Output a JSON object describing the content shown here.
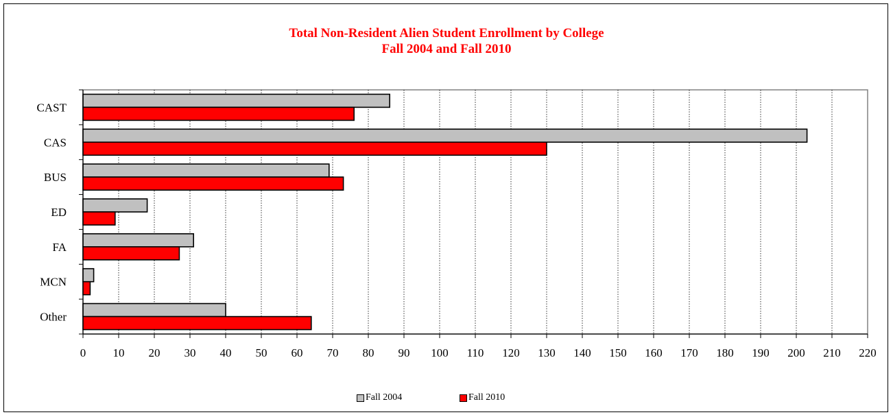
{
  "chart_data": {
    "type": "bar",
    "orientation": "horizontal",
    "title": "Total Non-Resident Alien Student Enrollment by College",
    "subtitle": "Fall 2004 and Fall 2010",
    "categories": [
      "CAST",
      "CAS",
      "BUS",
      "ED",
      "FA",
      "MCN",
      "Other"
    ],
    "series": [
      {
        "name": "Fall 2004",
        "color": "#c0c0c0",
        "values": [
          86,
          203,
          69,
          18,
          31,
          3,
          40
        ]
      },
      {
        "name": "Fall 2010",
        "color": "#ff0000",
        "values": [
          76,
          130,
          73,
          9,
          27,
          2,
          64
        ]
      }
    ],
    "xlim": [
      0,
      220
    ],
    "xticks": [
      0,
      10,
      20,
      30,
      40,
      50,
      60,
      70,
      80,
      90,
      100,
      110,
      120,
      130,
      140,
      150,
      160,
      170,
      180,
      190,
      200,
      210,
      220
    ],
    "grid": "vertical dotted",
    "legend": "bottom"
  }
}
